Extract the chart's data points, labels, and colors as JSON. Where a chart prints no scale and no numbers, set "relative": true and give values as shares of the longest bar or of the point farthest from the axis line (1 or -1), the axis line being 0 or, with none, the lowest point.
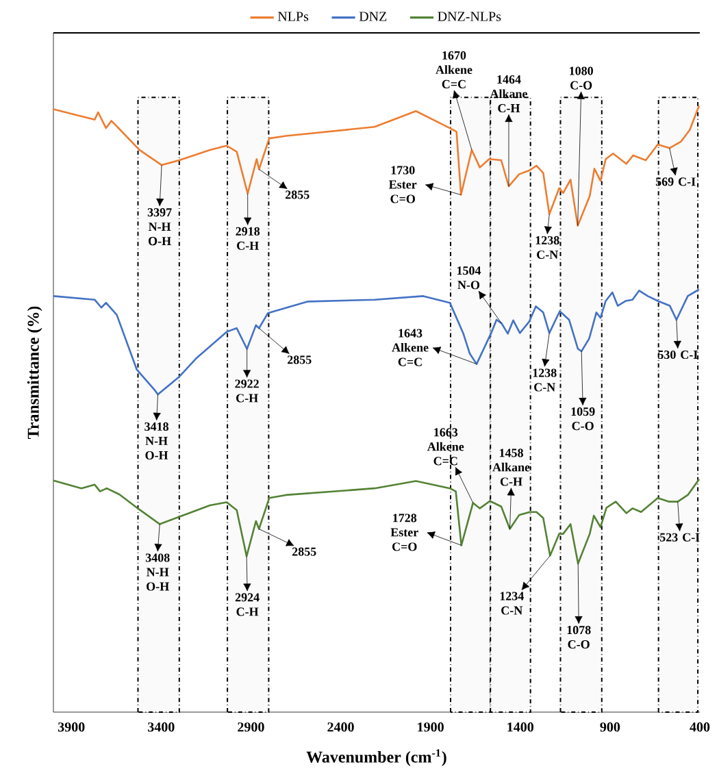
{
  "chart_data": {
    "type": "line",
    "relative": true,
    "xlabel": "Wavenumber (cm$^{-1}$)",
    "ylabel": "Transmittance (%)",
    "legend": "top",
    "xlim": [
      4000,
      400
    ],
    "xticks": [
      3900,
      3400,
      2900,
      2400,
      1900,
      1400,
      900,
      400
    ],
    "series": [
      {
        "name": "NLPs",
        "color": "#ed7d31",
        "x": [
          4000,
          3770,
          3751,
          3707,
          3677,
          3621,
          3521,
          3397,
          3299,
          3128,
          3035,
          2979,
          2918,
          2868,
          2855,
          2798,
          2705,
          2211,
          1981,
          1792,
          1755,
          1730,
          1670,
          1625,
          1573,
          1506,
          1464,
          1406,
          1350,
          1310,
          1272,
          1238,
          1183,
          1161,
          1120,
          1080,
          1013,
          987,
          953,
          924,
          883,
          809,
          771,
          701,
          634,
          569,
          504,
          456,
          404
        ],
        "values": [
          0.994,
          0.977,
          0.989,
          0.963,
          0.975,
          0.958,
          0.927,
          0.902,
          0.91,
          0.927,
          0.934,
          0.924,
          0.855,
          0.912,
          0.895,
          0.946,
          0.95,
          0.965,
          0.991,
          0.963,
          0.957,
          0.853,
          0.927,
          0.898,
          0.912,
          0.91,
          0.867,
          0.887,
          0.893,
          0.901,
          0.889,
          0.821,
          0.864,
          0.856,
          0.878,
          0.802,
          0.851,
          0.896,
          0.876,
          0.912,
          0.921,
          0.904,
          0.918,
          0.91,
          0.936,
          0.93,
          0.941,
          0.96,
          1.0
        ]
      },
      {
        "name": "DNZ",
        "color": "#4472c4",
        "x": [
          4000,
          3770,
          3733,
          3707,
          3647,
          3536,
          3436,
          3418,
          3299,
          3202,
          3035,
          2979,
          2922,
          2872,
          2855,
          2805,
          2582,
          2211,
          1940,
          1792,
          1718,
          1681,
          1643,
          1562,
          1532,
          1504,
          1469,
          1439,
          1402,
          1350,
          1313,
          1272,
          1238,
          1180,
          1128,
          1079,
          1059,
          1016,
          976,
          953,
          924,
          887,
          857,
          812,
          775,
          738,
          690,
          634,
          567,
          530,
          467,
          404
        ],
        "values": [
          0.686,
          0.68,
          0.667,
          0.675,
          0.655,
          0.565,
          0.531,
          0.524,
          0.553,
          0.584,
          0.627,
          0.633,
          0.599,
          0.638,
          0.633,
          0.658,
          0.677,
          0.68,
          0.686,
          0.675,
          0.625,
          0.591,
          0.574,
          0.625,
          0.647,
          0.641,
          0.624,
          0.646,
          0.625,
          0.644,
          0.669,
          0.659,
          0.625,
          0.661,
          0.647,
          0.599,
          0.595,
          0.616,
          0.659,
          0.65,
          0.678,
          0.692,
          0.67,
          0.678,
          0.68,
          0.695,
          0.686,
          0.678,
          0.67,
          0.647,
          0.686,
          0.697
        ]
      },
      {
        "name": "DNZ-NLPs",
        "color": "#548235",
        "x": [
          4000,
          3844,
          3770,
          3740,
          3703,
          3633,
          3521,
          3408,
          3299,
          3128,
          3035,
          2979,
          2924,
          2872,
          2855,
          2798,
          2705,
          2211,
          1981,
          1792,
          1759,
          1728,
          1663,
          1625,
          1569,
          1506,
          1458,
          1406,
          1347,
          1310,
          1272,
          1234,
          1183,
          1161,
          1120,
          1078,
          1013,
          990,
          953,
          920,
          868,
          809,
          775,
          727,
          634,
          571,
          523,
          467,
          404
        ],
        "values": [
          0.382,
          0.369,
          0.375,
          0.364,
          0.369,
          0.359,
          0.334,
          0.31,
          0.322,
          0.341,
          0.346,
          0.333,
          0.257,
          0.315,
          0.302,
          0.353,
          0.358,
          0.369,
          0.381,
          0.369,
          0.364,
          0.275,
          0.345,
          0.336,
          0.348,
          0.339,
          0.302,
          0.325,
          0.33,
          0.33,
          0.32,
          0.258,
          0.294,
          0.294,
          0.31,
          0.245,
          0.294,
          0.324,
          0.305,
          0.337,
          0.347,
          0.328,
          0.336,
          0.33,
          0.353,
          0.347,
          0.347,
          0.358,
          0.384
        ]
      }
    ],
    "bands": [
      {
        "axis": "x",
        "from": 3529,
        "to": 3299,
        "color": "#fafafa"
      },
      {
        "axis": "x",
        "from": 3031,
        "to": 2801,
        "color": "#fafafa"
      },
      {
        "axis": "x",
        "from": 1788,
        "to": 1566,
        "color": "#fafafa"
      },
      {
        "axis": "x",
        "from": 1566,
        "to": 1343,
        "color": "#fafafa"
      },
      {
        "axis": "x",
        "from": 1176,
        "to": 946,
        "color": "#fafafa"
      },
      {
        "axis": "x",
        "from": 630,
        "to": 411,
        "color": "#fafafa"
      }
    ],
    "annotations": [
      {
        "text": "3397 N-H O-H",
        "x": 3397,
        "y": 0.902
      },
      {
        "text": "2918 C-H",
        "x": 2918,
        "y": 0.855
      },
      {
        "text": "2855",
        "x": 2855,
        "y": 0.895
      },
      {
        "text": "1670 Alkene C=C",
        "x": 1670,
        "y": 0.927
      },
      {
        "text": "1730 Ester C=O",
        "x": 1730,
        "y": 0.853
      },
      {
        "text": "1464 Alkane C-H",
        "x": 1464,
        "y": 0.867
      },
      {
        "text": "1238 C-N",
        "x": 1238,
        "y": 0.821
      },
      {
        "text": "1080 C-O",
        "x": 1080,
        "y": 0.802
      },
      {
        "text": "569 C-I",
        "x": 569,
        "y": 0.93
      },
      {
        "text": "1504 N-O",
        "x": 1504,
        "y": 0.641
      },
      {
        "text": "3418 N-H O-H",
        "x": 3418,
        "y": 0.524
      },
      {
        "text": "2922 C-H",
        "x": 2922,
        "y": 0.599
      },
      {
        "text": "2855",
        "x": 2855,
        "y": 0.633
      },
      {
        "text": "1643 Alkene C=C",
        "x": 1643,
        "y": 0.574
      },
      {
        "text": "1238 C-N",
        "x": 1238,
        "y": 0.625
      },
      {
        "text": "1059 C-O",
        "x": 1059,
        "y": 0.595
      },
      {
        "text": "530 C-I",
        "x": 530,
        "y": 0.647
      },
      {
        "text": "3408 N-H O-H",
        "x": 3408,
        "y": 0.31
      },
      {
        "text": "2924 C-H",
        "x": 2924,
        "y": 0.257
      },
      {
        "text": "2855",
        "x": 2855,
        "y": 0.302
      },
      {
        "text": "1663 Alkene C=C",
        "x": 1663,
        "y": 0.345
      },
      {
        "text": "1728 Ester C=O",
        "x": 1728,
        "y": 0.275
      },
      {
        "text": "1458 Alkane C-H",
        "x": 1458,
        "y": 0.302
      },
      {
        "text": "1234 C-N",
        "x": 1234,
        "y": 0.258
      },
      {
        "text": "1078 C-O",
        "x": 1078,
        "y": 0.245
      },
      {
        "text": "523 C-I",
        "x": 523,
        "y": 0.347
      }
    ]
  }
}
